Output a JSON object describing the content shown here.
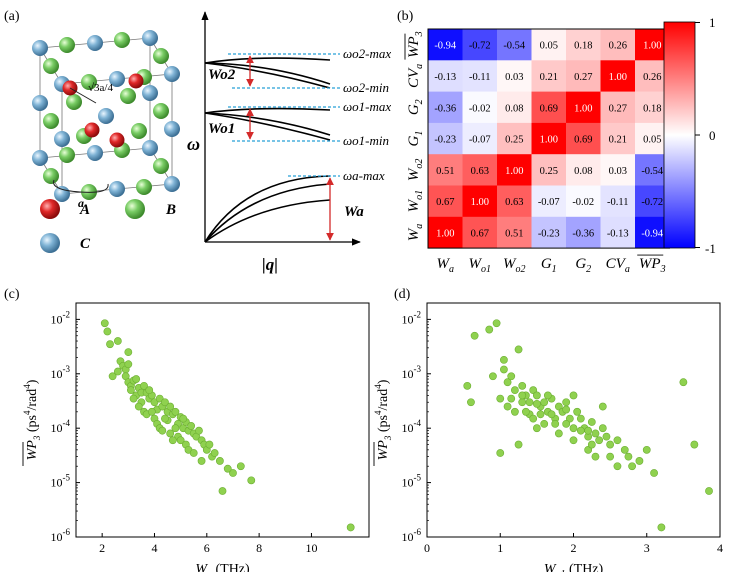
{
  "panels": {
    "a": {
      "tag": "(a)",
      "lattice_constant": "√3a/4",
      "edge_label": "a",
      "legend": [
        "A",
        "B",
        "C"
      ],
      "colors": {
        "A": "#d42a2a",
        "B": "#7ccf6a",
        "C": "#7fb3d5"
      }
    },
    "a2": {
      "y_axis": "ω",
      "x_axis": "|q|",
      "levels": [
        "ωo2-max",
        "ωo2-min",
        "ωo1-max",
        "ωo1-min",
        "ωa-max"
      ],
      "widths": [
        "Wo2",
        "Wo1",
        "Wa"
      ]
    },
    "b": {
      "tag": "(b)"
    },
    "c": {
      "tag": "(c)"
    },
    "d": {
      "tag": "(d)"
    }
  },
  "chart_data": [
    {
      "type": "heatmap",
      "panel": "b",
      "x_labels": [
        "Wa",
        "Wo1",
        "Wo2",
        "G1",
        "G2",
        "CVa",
        "WP3"
      ],
      "y_labels_top_to_bottom": [
        "WP3",
        "CVa",
        "G2",
        "G1",
        "Wo2",
        "Wo1",
        "Wa"
      ],
      "values_top_to_bottom": [
        [
          -0.94,
          -0.72,
          -0.54,
          0.05,
          0.18,
          0.26,
          1.0
        ],
        [
          -0.13,
          -0.11,
          0.03,
          0.21,
          0.27,
          1.0,
          0.26
        ],
        [
          -0.36,
          -0.02,
          0.08,
          0.69,
          1.0,
          0.27,
          0.18
        ],
        [
          -0.23,
          -0.07,
          0.25,
          1.0,
          0.69,
          0.21,
          0.05
        ],
        [
          0.51,
          0.63,
          1.0,
          0.25,
          0.08,
          0.03,
          -0.54
        ],
        [
          0.67,
          1.0,
          0.63,
          -0.07,
          -0.02,
          -0.11,
          -0.72
        ],
        [
          1.0,
          0.67,
          0.51,
          -0.23,
          -0.36,
          -0.13,
          -0.94
        ]
      ],
      "colorbar": {
        "min": -1,
        "max": 1,
        "ticks": [
          "-1",
          "0",
          "1"
        ],
        "low_color": "#0000ff",
        "mid_color": "#ffffff",
        "high_color": "#ff0000"
      }
    },
    {
      "type": "scatter",
      "panel": "c",
      "xlabel": "Wa (THz)",
      "ylabel": "WP3 (ps4/rad4)",
      "xlim": [
        1,
        12.2
      ],
      "ylim": [
        1e-06,
        0.02
      ],
      "yscale": "log",
      "xticks": [
        2,
        4,
        6,
        8,
        10
      ],
      "yticks": [
        "10-6",
        "10-5",
        "10-4",
        "10-3",
        "10-2"
      ],
      "color": "#8fd14f",
      "x": [
        2.1,
        2.2,
        2.3,
        2.6,
        2.7,
        2.8,
        2.9,
        3.0,
        2.6,
        2.9,
        3.0,
        3.1,
        3.2,
        3.1,
        3.3,
        3.3,
        3.4,
        3.5,
        3.2,
        3.5,
        3.6,
        3.7,
        3.8,
        3.4,
        3.6,
        3.9,
        4.0,
        4.1,
        3.7,
        3.8,
        4.2,
        4.3,
        4.0,
        4.1,
        4.4,
        4.5,
        4.2,
        4.6,
        4.7,
        4.3,
        4.5,
        4.8,
        4.9,
        5.0,
        4.6,
        4.8,
        5.1,
        5.2,
        4.9,
        5.3,
        5.0,
        5.4,
        5.5,
        5.2,
        5.6,
        5.7,
        5.3,
        5.8,
        5.9,
        6.0,
        5.5,
        6.1,
        6.2,
        5.8,
        6.3,
        6.5,
        6.6,
        7.0,
        7.3,
        7.7,
        6.8,
        4.4,
        3.9,
        4.7,
        5.1,
        3.0,
        2.4,
        11.5
      ],
      "y": [
        0.0085,
        0.006,
        0.0035,
        0.004,
        0.0017,
        0.0014,
        0.0012,
        0.0015,
        0.0011,
        0.0009,
        0.0007,
        0.0006,
        0.00075,
        0.0005,
        0.0008,
        0.0004,
        0.00055,
        0.00045,
        0.00035,
        0.0003,
        0.0006,
        0.00045,
        0.00035,
        0.00025,
        0.0002,
        0.0004,
        0.0003,
        0.00022,
        0.00018,
        0.0005,
        0.00035,
        0.00025,
        0.00015,
        0.00012,
        0.0003,
        0.0002,
        0.0001,
        0.00025,
        0.00018,
        9e-05,
        0.00014,
        0.0002,
        0.00012,
        0.00016,
        8e-05,
        0.0001,
        0.0001,
        0.00013,
        7e-05,
        9e-05,
        6e-05,
        0.00011,
        8e-05,
        5e-05,
        7e-05,
        9e-05,
        4e-05,
        6e-05,
        5e-05,
        4e-05,
        3.5e-05,
        5e-05,
        3e-05,
        2.5e-05,
        3.5e-05,
        2.5e-05,
        7e-06,
        1.5e-05,
        2e-05,
        1.1e-05,
        1.8e-05,
        0.00015,
        0.0002,
        6e-05,
        0.00015,
        0.0025,
        0.0009,
        1.5e-06
      ]
    },
    {
      "type": "scatter",
      "panel": "d",
      "xlabel": "Wo1 (THz)",
      "ylabel": "WP3 (ps4/rad4)",
      "xlim": [
        0,
        4
      ],
      "ylim": [
        1e-06,
        0.02
      ],
      "yscale": "log",
      "xticks": [
        0,
        1,
        2,
        3,
        4
      ],
      "yticks": [
        "10-6",
        "10-5",
        "10-4",
        "10-3",
        "10-2"
      ],
      "color": "#8fd14f",
      "x": [
        0.65,
        0.85,
        0.95,
        0.55,
        0.6,
        1.05,
        1.1,
        1.15,
        1.2,
        1.25,
        1.0,
        1.3,
        1.35,
        1.4,
        1.45,
        1.5,
        1.1,
        1.2,
        1.3,
        1.4,
        1.55,
        1.6,
        1.65,
        1.7,
        1.75,
        1.8,
        1.5,
        1.6,
        1.7,
        1.85,
        1.9,
        1.95,
        2.0,
        2.05,
        1.8,
        1.9,
        2.1,
        2.15,
        2.2,
        2.25,
        2.0,
        2.1,
        2.3,
        2.35,
        2.4,
        2.2,
        2.45,
        2.5,
        2.3,
        2.6,
        2.7,
        2.5,
        2.8,
        2.9,
        3.0,
        3.1,
        3.2,
        3.5,
        3.65,
        3.85,
        1.0,
        1.25,
        1.45,
        1.65,
        2.0,
        2.4,
        0.9,
        1.15,
        1.35,
        1.55,
        1.75,
        2.25,
        2.6,
        1.05,
        1.3,
        1.5,
        2.2,
        2.75,
        1.9
      ],
      "y": [
        0.005,
        0.0065,
        0.0085,
        0.0006,
        0.0003,
        0.0012,
        0.0007,
        0.0009,
        0.0005,
        0.0028,
        0.00035,
        0.0006,
        0.0004,
        0.0003,
        0.0005,
        0.0004,
        0.00025,
        0.0002,
        0.0003,
        0.00018,
        0.00025,
        0.0003,
        0.0002,
        0.00035,
        0.00015,
        0.00025,
        0.0001,
        0.00012,
        0.00018,
        0.0002,
        0.0003,
        0.00015,
        0.0001,
        0.0002,
        8e-05,
        0.00012,
        0.00015,
        0.0001,
        7e-05,
        0.00013,
        6e-05,
        9e-05,
        8e-05,
        6e-05,
        0.0001,
        4e-05,
        7e-05,
        5e-05,
        3e-05,
        6e-05,
        4e-05,
        3e-05,
        2e-05,
        2.5e-05,
        4e-05,
        1.5e-05,
        1.5e-06,
        0.0007,
        5e-05,
        7e-06,
        3.5e-05,
        5e-05,
        0.00015,
        0.0004,
        0.0004,
        0.00025,
        0.0009,
        0.00035,
        0.0002,
        0.00018,
        0.00012,
        5e-05,
        2e-05,
        0.0018,
        0.0004,
        0.00028,
        9e-05,
        3e-05,
        0.00022
      ]
    }
  ]
}
